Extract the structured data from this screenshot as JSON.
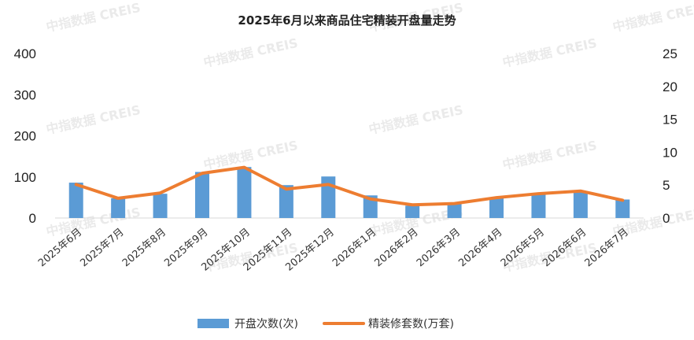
{
  "chart_data": {
    "type": "bar+line",
    "title": "2025年6月以来商品住宅精装开盘量走势",
    "categories": [
      "2025年6月",
      "2025年7月",
      "2025年8月",
      "2025年9月",
      "2025年10月",
      "2025年11月",
      "2025年12月",
      "2026年1月",
      "2026年2月",
      "2026年3月",
      "2026年4月",
      "2026年5月",
      "2026年6月",
      "2026年7月"
    ],
    "series": [
      {
        "name": "开盘次数(次)",
        "type": "bar",
        "axis": "left",
        "color": "#5b9bd5",
        "values": [
          86,
          48,
          59,
          112,
          124,
          80,
          101,
          55,
          30,
          37,
          50,
          60,
          65,
          45
        ]
      },
      {
        "name": "精装修套数(万套)",
        "type": "line",
        "axis": "right",
        "color": "#ed7d31",
        "values": [
          5.1,
          3.0,
          3.8,
          6.8,
          7.7,
          4.4,
          5.1,
          2.9,
          2.0,
          2.2,
          3.1,
          3.7,
          4.1,
          2.7
        ]
      }
    ],
    "y_left": {
      "ylim": [
        0,
        400
      ],
      "ticks": [
        0,
        100,
        200,
        300,
        400
      ]
    },
    "y_right": {
      "ylim": [
        0,
        25
      ],
      "ticks": [
        0,
        5,
        10,
        15,
        20,
        25
      ]
    },
    "legend": {
      "placement": "bottom-center",
      "entries": [
        "开盘次数(次)",
        "精装修套数(万套)"
      ]
    },
    "grid": false
  },
  "watermark": "中指数据 CREIS"
}
